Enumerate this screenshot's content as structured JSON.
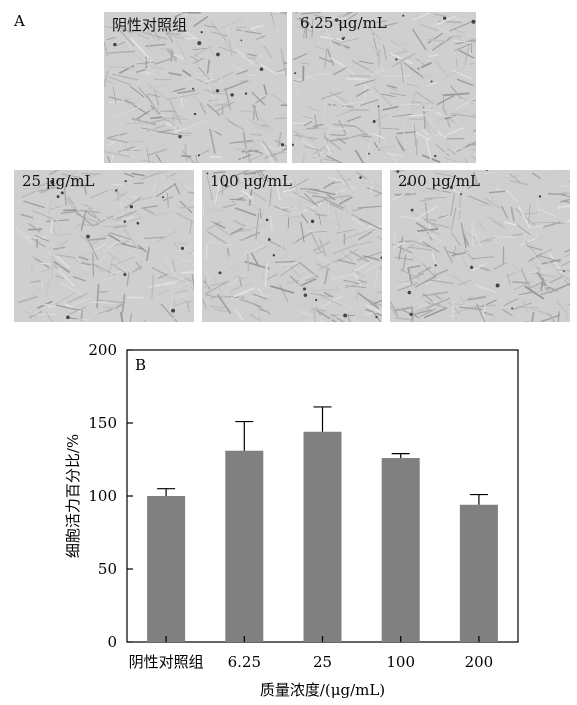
{
  "panel_a": {
    "letter": "A",
    "images": [
      {
        "label": "阴性对照组"
      },
      {
        "label": "6.25 μg/mL"
      },
      {
        "label": "25 μg/mL"
      },
      {
        "label": "100 μg/mL"
      },
      {
        "label": "200 μg/mL"
      }
    ]
  },
  "chart_data": {
    "type": "bar",
    "panel_letter": "B",
    "categories": [
      "阴性对照组",
      "6.25",
      "25",
      "100",
      "200"
    ],
    "values": [
      100,
      131,
      144,
      126,
      94
    ],
    "error_plus": [
      5,
      20,
      17,
      3,
      7
    ],
    "xlabel": "质量浓度/(μg/mL)",
    "ylabel": "细胞活力百分比/%",
    "ylim": [
      0,
      200
    ],
    "yticks": [
      0,
      50,
      100,
      150,
      200
    ],
    "bar_color": "#808080",
    "grid": false
  }
}
